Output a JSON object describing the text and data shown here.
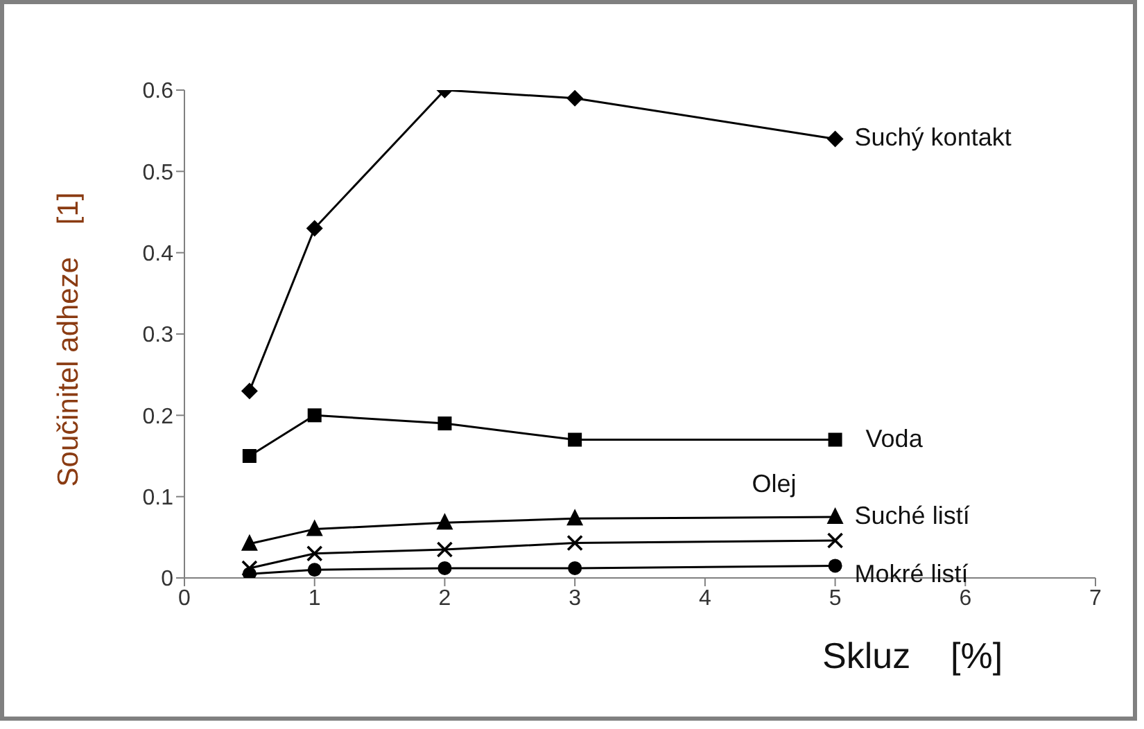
{
  "chart_data": {
    "type": "line",
    "xlabel": "Skluz    [%]",
    "ylabel": "Součinitel adheze    [1]",
    "x": [
      0.5,
      1,
      2,
      3,
      5
    ],
    "series": [
      {
        "name": "Suchý kontakt",
        "color": "#000000",
        "marker": "diamond",
        "values": [
          0.23,
          0.43,
          0.6,
          0.59,
          0.54
        ]
      },
      {
        "name": "Voda",
        "color": "#000000",
        "marker": "square",
        "values": [
          0.15,
          0.2,
          0.19,
          0.17,
          0.17
        ]
      },
      {
        "name": "Olej",
        "color": "#000000",
        "marker": "triangle",
        "values": [
          0.042,
          0.06,
          0.068,
          0.073,
          0.075
        ]
      },
      {
        "name": "Suché listí",
        "color": "#000000",
        "marker": "cross",
        "values": [
          0.012,
          0.03,
          0.035,
          0.043,
          0.046
        ]
      },
      {
        "name": "Mokré listí",
        "color": "#000000",
        "marker": "circle",
        "values": [
          0.005,
          0.01,
          0.012,
          0.012,
          0.015
        ]
      }
    ],
    "xlim": [
      0,
      7
    ],
    "xticks": [
      0,
      1,
      2,
      3,
      4,
      5,
      6,
      7
    ],
    "ylim": [
      0,
      0.6
    ],
    "yticks": [
      0,
      0.1,
      0.2,
      0.3,
      0.4,
      0.5,
      0.6
    ],
    "grid": false,
    "legend": false,
    "line_style": "solid"
  }
}
